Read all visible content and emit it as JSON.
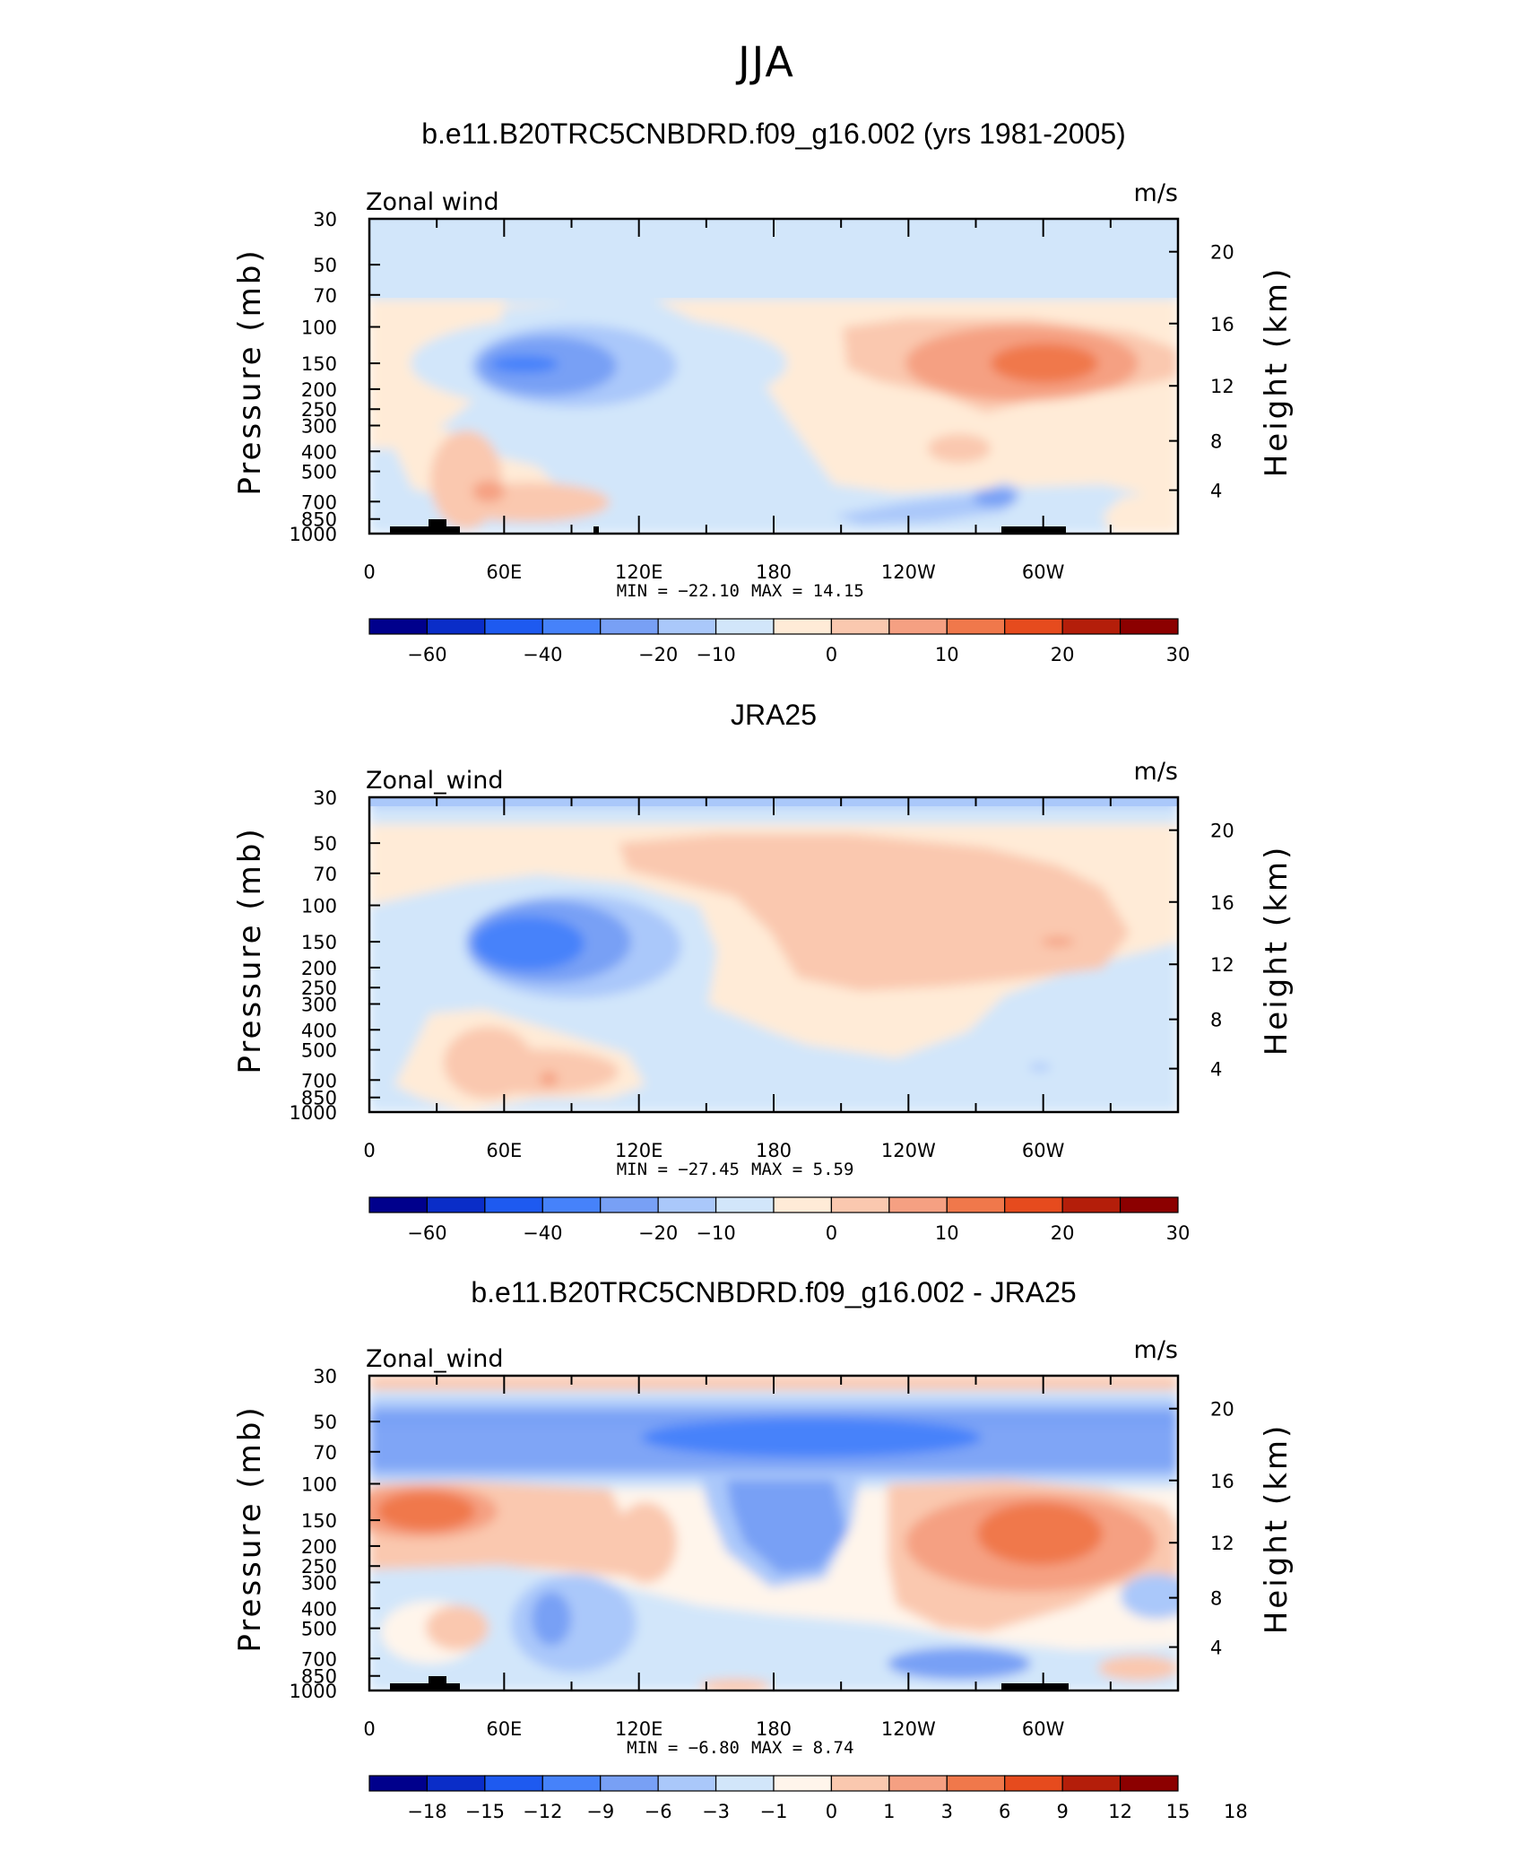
{
  "figure_title": "JJA",
  "colors": {
    "cont_scale": [
      "#00008C",
      "#0A2DC8",
      "#1E5AF0",
      "#4682FA",
      "#78A0F5",
      "#AAC8FA",
      "#D2E6FA",
      "#FFEBD7",
      "#FAC8AF",
      "#F5A082",
      "#F0784B",
      "#E64B1E",
      "#B41E0A",
      "#8C0000"
    ],
    "diff_scale": [
      "#00008C",
      "#0A2DC8",
      "#1E5AF0",
      "#4682FA",
      "#78A0F5",
      "#AAC8FA",
      "#D2E6FA",
      "#FFF5EB",
      "#FAC8AF",
      "#F5A082",
      "#F0784B",
      "#E64B1E",
      "#B41E0A",
      "#8C0000"
    ]
  },
  "panels": [
    {
      "title": "b.e11.B20TRC5CNBDRD.f09_g16.002 (yrs 1981-2005)",
      "left_label": "Zonal wind",
      "units": "m/s",
      "ylabel_left": "Pressure (mb)",
      "ylabel_right": "Height (km)",
      "min_text": "MIN =  −22.10",
      "max_text": "MAX =   14.15",
      "colorbar_labels": [
        "−60",
        "−40",
        "−20",
        "−10",
        "0",
        "10",
        "20",
        "30"
      ],
      "topography": true
    },
    {
      "title": "JRA25",
      "left_label": "Zonal_wind",
      "units": "m/s",
      "ylabel_left": "Pressure (mb)",
      "ylabel_right": "Height (km)",
      "min_text": "MIN =  −27.45",
      "max_text": "MAX =     5.59",
      "colorbar_labels": [
        "−60",
        "−40",
        "−20",
        "−10",
        "0",
        "10",
        "20",
        "30"
      ],
      "topography": false
    },
    {
      "title": "b.e11.B20TRC5CNBDRD.f09_g16.002 - JRA25",
      "left_label": "Zonal_wind",
      "units": "m/s",
      "ylabel_left": "Pressure (mb)",
      "ylabel_right": "Height (km)",
      "min_text": "MIN =    −6.80",
      "max_text": "MAX =     8.74",
      "colorbar_labels": [
        "−18",
        "−15",
        "−12",
        "−9",
        "−6",
        "−3",
        "−1",
        "0",
        "1",
        "3",
        "6",
        "9",
        "12",
        "15",
        "18"
      ],
      "topography": true
    }
  ],
  "chart_data": [
    {
      "type": "heatmap",
      "title": "b.e11.B20TRC5CNBDRD.f09_g16.002 (yrs 1981-2005)",
      "variable": "Zonal wind",
      "units": "m/s",
      "x_tick_labels": [
        "0",
        "60E",
        "120E",
        "180",
        "120W",
        "60W"
      ],
      "x_range": [
        0,
        360
      ],
      "y_left_tick_labels": [
        "30",
        "50",
        "70",
        "100",
        "150",
        "200",
        "250",
        "300",
        "400",
        "500",
        "700",
        "850",
        "1000"
      ],
      "y_right_tick_labels": [
        "20",
        "16",
        "12",
        "8",
        "4"
      ],
      "y_scale": "log (pressure)",
      "min": -22.1,
      "max": 14.15,
      "features": [
        {
          "kind": "blob",
          "value": -15,
          "lon": 75,
          "p": 150
        },
        {
          "kind": "blob",
          "value": -5,
          "lon": 130,
          "p": 200
        },
        {
          "kind": "blob",
          "value": 12,
          "lon": 300,
          "p": 150
        },
        {
          "kind": "blob",
          "value": 6,
          "lon": 245,
          "p": 140
        },
        {
          "kind": "blob",
          "value": 4,
          "lon": 55,
          "p": 550
        }
      ]
    },
    {
      "type": "heatmap",
      "title": "JRA25",
      "variable": "Zonal_wind",
      "units": "m/s",
      "x_tick_labels": [
        "0",
        "60E",
        "120E",
        "180",
        "120W",
        "60W"
      ],
      "x_range": [
        0,
        360
      ],
      "y_left_tick_labels": [
        "30",
        "50",
        "70",
        "100",
        "150",
        "200",
        "250",
        "300",
        "400",
        "500",
        "700",
        "850",
        "1000"
      ],
      "y_right_tick_labels": [
        "20",
        "16",
        "12",
        "8",
        "4"
      ],
      "y_scale": "log (pressure)",
      "min": -27.45,
      "max": 5.59,
      "features": [
        {
          "kind": "blob",
          "value": -20,
          "lon": 80,
          "p": 150
        },
        {
          "kind": "blob",
          "value": -5,
          "lon": 110,
          "p": 200
        },
        {
          "kind": "blob",
          "value": 4,
          "lon": 230,
          "p": 100
        },
        {
          "kind": "blob",
          "value": 4,
          "lon": 70,
          "p": 600
        }
      ]
    },
    {
      "type": "heatmap",
      "title": "b.e11.B20TRC5CNBDRD.f09_g16.002 - JRA25",
      "variable": "Zonal_wind",
      "units": "m/s",
      "x_tick_labels": [
        "0",
        "60E",
        "120E",
        "180",
        "120W",
        "60W"
      ],
      "x_range": [
        0,
        360
      ],
      "y_left_tick_labels": [
        "30",
        "50",
        "70",
        "100",
        "150",
        "200",
        "250",
        "300",
        "400",
        "500",
        "700",
        "850",
        "1000"
      ],
      "y_right_tick_labels": [
        "20",
        "16",
        "12",
        "8",
        "4"
      ],
      "y_scale": "log (pressure)",
      "min": -6.8,
      "max": 8.74,
      "features": [
        {
          "kind": "band",
          "value": -4.5,
          "p": 60
        },
        {
          "kind": "blob",
          "value": -6,
          "lon": 165,
          "p": 55
        },
        {
          "kind": "blob",
          "value": 7,
          "lon": 30,
          "p": 130
        },
        {
          "kind": "blob",
          "value": 7,
          "lon": 300,
          "p": 150
        },
        {
          "kind": "blob",
          "value": -4,
          "lon": 180,
          "p": 180
        },
        {
          "kind": "blob",
          "value": -3,
          "lon": 80,
          "p": 500
        },
        {
          "kind": "blob",
          "value": -3,
          "lon": 250,
          "p": 750
        }
      ]
    }
  ]
}
